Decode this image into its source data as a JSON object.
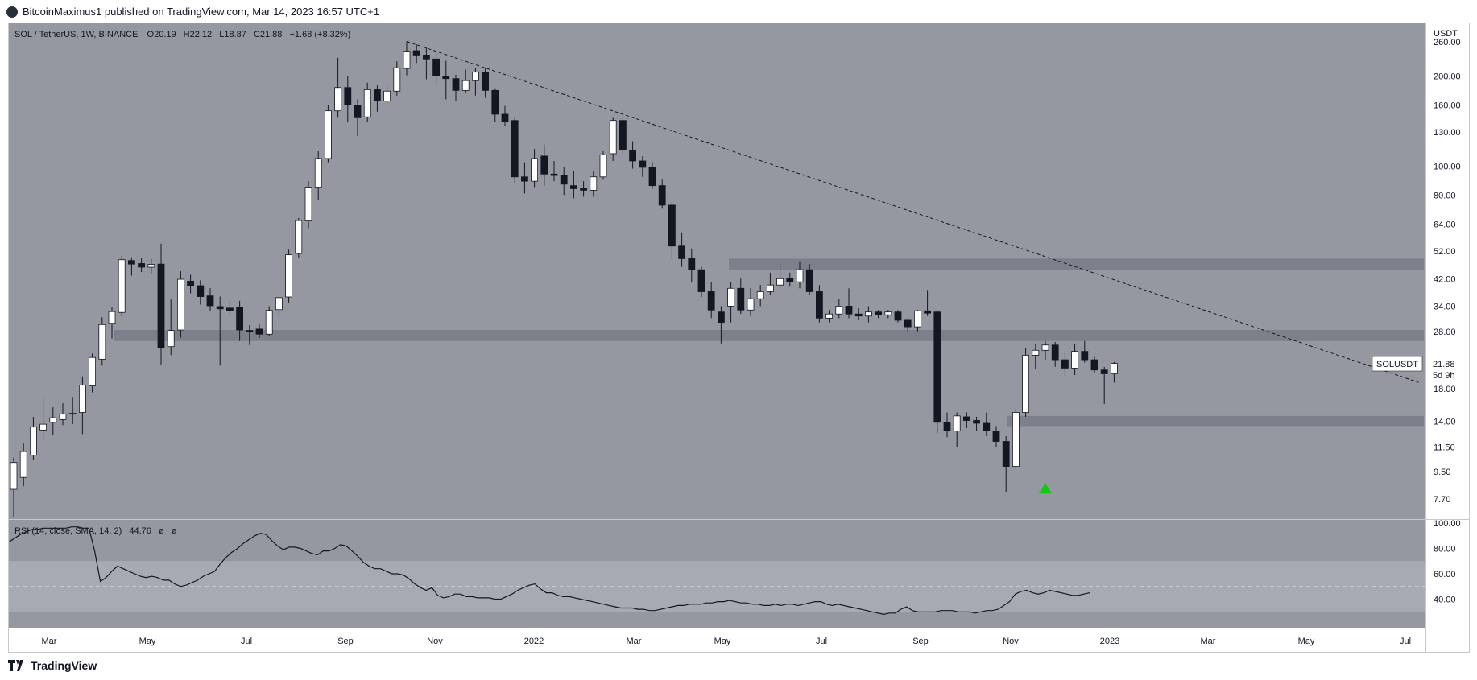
{
  "header": {
    "publisher_line": "BitcoinMaximus1 published on TradingView.com, Mar 14, 2023 16:57 UTC+1"
  },
  "legend": {
    "symbol": "SOL / TetherUS, 1W, BINANCE",
    "o_label": "O",
    "o_value": "20.19",
    "h_label": "H",
    "h_value": "22.12",
    "l_label": "L",
    "l_value": "18.87",
    "c_label": "C",
    "c_value": "21.88",
    "change": "+1.68 (+8.32%)"
  },
  "rsi_legend": {
    "label": "RSI (14, close, SMA, 14, 2)",
    "value": "44.76",
    "extra1": "ø",
    "extra2": "ø"
  },
  "price_axis": {
    "currency": "USDT",
    "ticks": [
      "260.00",
      "200.00",
      "160.00",
      "130.00",
      "100.00",
      "80.00",
      "64.00",
      "52.00",
      "42.00",
      "34.00",
      "28.00",
      "18.00",
      "14.00",
      "11.50",
      "9.50",
      "7.70"
    ]
  },
  "rsi_axis": {
    "ticks": [
      "100.00",
      "80.00",
      "60.00",
      "40.00"
    ]
  },
  "last_price": {
    "symbol": "SOLUSDT",
    "price": "21.88",
    "countdown": "5d 9h"
  },
  "time_axis": [
    "Mar",
    "May",
    "Jul",
    "Sep",
    "Nov",
    "2022",
    "Mar",
    "May",
    "Jul",
    "Sep",
    "Nov",
    "2023",
    "Mar",
    "May",
    "Jul"
  ],
  "footer": {
    "brand": "TradingView"
  },
  "colors": {
    "background": "#9598a1",
    "up": "#ffffff",
    "down": "#131722",
    "rsi_band": "#a7aab2",
    "zone": "#787b86",
    "marker": "#14c914"
  },
  "chart_data": {
    "type": "candlestick",
    "title": "SOL / TetherUS, 1W, BINANCE",
    "scale": "log",
    "ylim": [
      6.6,
      300
    ],
    "candles": [
      {
        "o": 8.3,
        "h": 10.6,
        "l": 6.7,
        "c": 10.2
      },
      {
        "o": 9.1,
        "h": 11.8,
        "l": 8.5,
        "c": 11.1
      },
      {
        "o": 10.8,
        "h": 14.5,
        "l": 10.4,
        "c": 13.4
      },
      {
        "o": 13.1,
        "h": 16.8,
        "l": 12.1,
        "c": 13.7
      },
      {
        "o": 13.9,
        "h": 15.6,
        "l": 12.6,
        "c": 14.4
      },
      {
        "o": 14.2,
        "h": 16.1,
        "l": 13.6,
        "c": 14.8
      },
      {
        "o": 14.8,
        "h": 16.9,
        "l": 13.7,
        "c": 14.9
      },
      {
        "o": 15.0,
        "h": 19.8,
        "l": 12.7,
        "c": 18.5
      },
      {
        "o": 18.4,
        "h": 23.6,
        "l": 17.5,
        "c": 22.9
      },
      {
        "o": 22.6,
        "h": 31.2,
        "l": 21.5,
        "c": 29.5
      },
      {
        "o": 29.8,
        "h": 33.8,
        "l": 26.5,
        "c": 32.6
      },
      {
        "o": 32.4,
        "h": 50.0,
        "l": 31.4,
        "c": 48.6
      },
      {
        "o": 48.3,
        "h": 49.5,
        "l": 43.0,
        "c": 47.0
      },
      {
        "o": 47.2,
        "h": 49.2,
        "l": 44.2,
        "c": 45.9
      },
      {
        "o": 45.9,
        "h": 49.0,
        "l": 43.6,
        "c": 46.9
      },
      {
        "o": 47.0,
        "h": 55.0,
        "l": 21.7,
        "c": 24.7
      },
      {
        "o": 24.9,
        "h": 35.8,
        "l": 23.3,
        "c": 28.2
      },
      {
        "o": 28.3,
        "h": 44.5,
        "l": 26.7,
        "c": 41.8
      },
      {
        "o": 41.2,
        "h": 43.3,
        "l": 37.5,
        "c": 39.8
      },
      {
        "o": 39.8,
        "h": 41.5,
        "l": 34.4,
        "c": 36.6
      },
      {
        "o": 36.8,
        "h": 39.0,
        "l": 32.8,
        "c": 34.1
      },
      {
        "o": 33.9,
        "h": 36.6,
        "l": 21.5,
        "c": 33.3
      },
      {
        "o": 33.5,
        "h": 35.4,
        "l": 31.9,
        "c": 32.8
      },
      {
        "o": 33.7,
        "h": 35.4,
        "l": 26.0,
        "c": 28.3
      },
      {
        "o": 28.2,
        "h": 29.4,
        "l": 25.2,
        "c": 28.1
      },
      {
        "o": 28.5,
        "h": 29.6,
        "l": 26.6,
        "c": 27.4
      },
      {
        "o": 27.4,
        "h": 34.0,
        "l": 27.0,
        "c": 32.9
      },
      {
        "o": 33.1,
        "h": 36.6,
        "l": 31.1,
        "c": 36.3
      },
      {
        "o": 36.5,
        "h": 52.5,
        "l": 34.8,
        "c": 50.5
      },
      {
        "o": 51.0,
        "h": 67.0,
        "l": 49.5,
        "c": 65.7
      },
      {
        "o": 65.5,
        "h": 89.0,
        "l": 62.0,
        "c": 85.0
      },
      {
        "o": 85.0,
        "h": 112.0,
        "l": 77.0,
        "c": 106.0
      },
      {
        "o": 106.0,
        "h": 160.0,
        "l": 103.0,
        "c": 153.0
      },
      {
        "o": 153.0,
        "h": 230.0,
        "l": 145.0,
        "c": 183.0
      },
      {
        "o": 183.0,
        "h": 200.0,
        "l": 140.0,
        "c": 160.0
      },
      {
        "o": 160.0,
        "h": 167.0,
        "l": 126.0,
        "c": 145.0
      },
      {
        "o": 146.0,
        "h": 190.0,
        "l": 140.0,
        "c": 180.0
      },
      {
        "o": 180.0,
        "h": 186.0,
        "l": 152.0,
        "c": 165.0
      },
      {
        "o": 165.0,
        "h": 186.0,
        "l": 162.0,
        "c": 178.0
      },
      {
        "o": 178.0,
        "h": 224.0,
        "l": 172.0,
        "c": 213.0
      },
      {
        "o": 212.0,
        "h": 261.0,
        "l": 201.0,
        "c": 242.0
      },
      {
        "o": 243.0,
        "h": 255.0,
        "l": 221.0,
        "c": 235.0
      },
      {
        "o": 235.0,
        "h": 250.0,
        "l": 195.0,
        "c": 228.0
      },
      {
        "o": 228.0,
        "h": 239.0,
        "l": 185.0,
        "c": 200.0
      },
      {
        "o": 200.0,
        "h": 225.0,
        "l": 167.0,
        "c": 196.0
      },
      {
        "o": 196.0,
        "h": 202.0,
        "l": 165.0,
        "c": 179.0
      },
      {
        "o": 179.0,
        "h": 210.0,
        "l": 176.0,
        "c": 193.0
      },
      {
        "o": 193.0,
        "h": 213.0,
        "l": 172.0,
        "c": 206.0
      },
      {
        "o": 206.0,
        "h": 213.0,
        "l": 169.0,
        "c": 179.0
      },
      {
        "o": 179.0,
        "h": 182.0,
        "l": 140.0,
        "c": 149.0
      },
      {
        "o": 149.0,
        "h": 159.0,
        "l": 136.0,
        "c": 141.0
      },
      {
        "o": 142.0,
        "h": 145.0,
        "l": 88.0,
        "c": 92.0
      },
      {
        "o": 92.0,
        "h": 103.0,
        "l": 81.0,
        "c": 89.0
      },
      {
        "o": 89.0,
        "h": 114.0,
        "l": 85.0,
        "c": 106.0
      },
      {
        "o": 108.0,
        "h": 118.0,
        "l": 86.0,
        "c": 94.0
      },
      {
        "o": 94.0,
        "h": 104.0,
        "l": 89.0,
        "c": 93.0
      },
      {
        "o": 93.0,
        "h": 99.0,
        "l": 80.0,
        "c": 87.0
      },
      {
        "o": 86.0,
        "h": 96.0,
        "l": 78.0,
        "c": 84.0
      },
      {
        "o": 84.0,
        "h": 89.0,
        "l": 79.0,
        "c": 83.0
      },
      {
        "o": 83.0,
        "h": 96.0,
        "l": 79.0,
        "c": 92.0
      },
      {
        "o": 92.0,
        "h": 112.0,
        "l": 90.0,
        "c": 109.0
      },
      {
        "o": 110.0,
        "h": 145.0,
        "l": 104.0,
        "c": 142.0
      },
      {
        "o": 142.0,
        "h": 145.0,
        "l": 110.0,
        "c": 113.0
      },
      {
        "o": 113.0,
        "h": 121.0,
        "l": 98.0,
        "c": 104.0
      },
      {
        "o": 104.0,
        "h": 108.0,
        "l": 92.0,
        "c": 99.0
      },
      {
        "o": 99.0,
        "h": 103.0,
        "l": 84.0,
        "c": 86.0
      },
      {
        "o": 86.0,
        "h": 90.0,
        "l": 72.0,
        "c": 74.0
      },
      {
        "o": 74.0,
        "h": 76.0,
        "l": 49.0,
        "c": 54.0
      },
      {
        "o": 54.0,
        "h": 60.0,
        "l": 46.0,
        "c": 49.0
      },
      {
        "o": 49.0,
        "h": 53.0,
        "l": 41.0,
        "c": 45.0
      },
      {
        "o": 45.0,
        "h": 46.0,
        "l": 36.5,
        "c": 38.0
      },
      {
        "o": 38.0,
        "h": 41.0,
        "l": 31.0,
        "c": 33.0
      },
      {
        "o": 32.5,
        "h": 34.0,
        "l": 25.5,
        "c": 30.0
      },
      {
        "o": 34.0,
        "h": 41.0,
        "l": 30.0,
        "c": 39.0
      },
      {
        "o": 39.0,
        "h": 42.0,
        "l": 32.0,
        "c": 33.0
      },
      {
        "o": 33.0,
        "h": 39.0,
        "l": 31.5,
        "c": 36.0
      },
      {
        "o": 36.0,
        "h": 40.0,
        "l": 34.0,
        "c": 38.0
      },
      {
        "o": 38.0,
        "h": 44.0,
        "l": 37.0,
        "c": 40.0
      },
      {
        "o": 40.0,
        "h": 47.0,
        "l": 39.0,
        "c": 42.0
      },
      {
        "o": 42.0,
        "h": 44.0,
        "l": 39.5,
        "c": 41.0
      },
      {
        "o": 41.0,
        "h": 48.0,
        "l": 39.0,
        "c": 45.0
      },
      {
        "o": 45.0,
        "h": 47.0,
        "l": 37.0,
        "c": 38.0
      },
      {
        "o": 38.0,
        "h": 40.0,
        "l": 30.0,
        "c": 31.0
      },
      {
        "o": 31.0,
        "h": 33.0,
        "l": 30.0,
        "c": 32.0
      },
      {
        "o": 32.0,
        "h": 36.0,
        "l": 31.0,
        "c": 34.0
      },
      {
        "o": 34.0,
        "h": 39.0,
        "l": 31.0,
        "c": 32.0
      },
      {
        "o": 32.0,
        "h": 33.5,
        "l": 30.5,
        "c": 31.5
      },
      {
        "o": 31.5,
        "h": 34.0,
        "l": 30.0,
        "c": 32.5
      },
      {
        "o": 32.5,
        "h": 33.0,
        "l": 31.0,
        "c": 31.8
      },
      {
        "o": 31.8,
        "h": 33.0,
        "l": 31.0,
        "c": 32.5
      },
      {
        "o": 32.5,
        "h": 33.0,
        "l": 30.0,
        "c": 30.5
      },
      {
        "o": 30.5,
        "h": 31.0,
        "l": 27.8,
        "c": 29.0
      },
      {
        "o": 29.0,
        "h": 33.0,
        "l": 28.0,
        "c": 32.8
      },
      {
        "o": 32.8,
        "h": 38.5,
        "l": 31.5,
        "c": 32.2
      },
      {
        "o": 32.5,
        "h": 33.0,
        "l": 12.8,
        "c": 13.9
      },
      {
        "o": 13.9,
        "h": 15.0,
        "l": 12.4,
        "c": 13.0
      },
      {
        "o": 13.0,
        "h": 15.0,
        "l": 11.5,
        "c": 14.6
      },
      {
        "o": 14.5,
        "h": 15.0,
        "l": 13.3,
        "c": 14.1
      },
      {
        "o": 14.1,
        "h": 14.5,
        "l": 13.0,
        "c": 13.8
      },
      {
        "o": 13.8,
        "h": 15.0,
        "l": 12.5,
        "c": 13.0
      },
      {
        "o": 13.0,
        "h": 13.5,
        "l": 11.5,
        "c": 12.0
      },
      {
        "o": 12.0,
        "h": 12.5,
        "l": 8.1,
        "c": 9.9
      },
      {
        "o": 9.9,
        "h": 15.6,
        "l": 9.7,
        "c": 15.0
      },
      {
        "o": 15.0,
        "h": 24.7,
        "l": 14.5,
        "c": 23.3
      },
      {
        "o": 23.3,
        "h": 25.5,
        "l": 21.0,
        "c": 24.2
      },
      {
        "o": 24.2,
        "h": 26.0,
        "l": 22.5,
        "c": 25.2
      },
      {
        "o": 25.2,
        "h": 25.8,
        "l": 21.3,
        "c": 22.5
      },
      {
        "o": 22.5,
        "h": 24.0,
        "l": 19.8,
        "c": 21.1
      },
      {
        "o": 21.1,
        "h": 25.5,
        "l": 20.0,
        "c": 24.0
      },
      {
        "o": 24.0,
        "h": 26.0,
        "l": 22.0,
        "c": 22.5
      },
      {
        "o": 22.5,
        "h": 23.0,
        "l": 20.3,
        "c": 20.8
      },
      {
        "o": 20.8,
        "h": 21.3,
        "l": 16.0,
        "c": 20.2
      },
      {
        "o": 20.19,
        "h": 22.12,
        "l": 18.87,
        "c": 21.88
      }
    ],
    "support_resistance_zones": [
      [
        45.0,
        49.0
      ],
      [
        26.0,
        28.3
      ],
      [
        13.5,
        14.6
      ]
    ],
    "trendline": {
      "from_candle": 40,
      "from_price": 261,
      "to_candle": 143,
      "to_price": 18.9
    },
    "signal_marker": {
      "candle": 105,
      "price": 8.4
    },
    "rsi": {
      "name": "RSI (14, close, SMA, 14, 2)",
      "ylim": [
        20,
        100
      ],
      "values": [
        85,
        88,
        91,
        93,
        95,
        95,
        96,
        96,
        96,
        96,
        96,
        97,
        97,
        96,
        96,
        78,
        54,
        57,
        62,
        66,
        64,
        62,
        60,
        58,
        57,
        58,
        57,
        55,
        55,
        52,
        50,
        51,
        53,
        55,
        58,
        60,
        62,
        68,
        73,
        77,
        80,
        84,
        87,
        90,
        92,
        91,
        86,
        82,
        79,
        81,
        81,
        80,
        78,
        76,
        75,
        78,
        78,
        80,
        83,
        82,
        78,
        74,
        69,
        66,
        64,
        64,
        62,
        60,
        60,
        59,
        56,
        52,
        49,
        47,
        49,
        43,
        41,
        42,
        44,
        44,
        42,
        42,
        41,
        41,
        41,
        40,
        40,
        42,
        44,
        47,
        49,
        51,
        52,
        48,
        45,
        45,
        43,
        42,
        42,
        41,
        40,
        39,
        38,
        37,
        36,
        35,
        34,
        33,
        33,
        33,
        32,
        32,
        31,
        31,
        32,
        33,
        34,
        35,
        35,
        36,
        36,
        36,
        37,
        37,
        38,
        38,
        39,
        38,
        37,
        37,
        36,
        36,
        35,
        35,
        36,
        35,
        36,
        36,
        35,
        36,
        37,
        38,
        38,
        36,
        35,
        36,
        35,
        34,
        33,
        32,
        31,
        30,
        29,
        28,
        29,
        29,
        32,
        34,
        31,
        30,
        30,
        30,
        30,
        31,
        31,
        31,
        30,
        30,
        30,
        29,
        30,
        31,
        31,
        32,
        35,
        38,
        44,
        46,
        47,
        45,
        44,
        45,
        47,
        46,
        45,
        44,
        43,
        43,
        44,
        45
      ],
      "bands": [
        30,
        70
      ],
      "midline": 50
    }
  }
}
